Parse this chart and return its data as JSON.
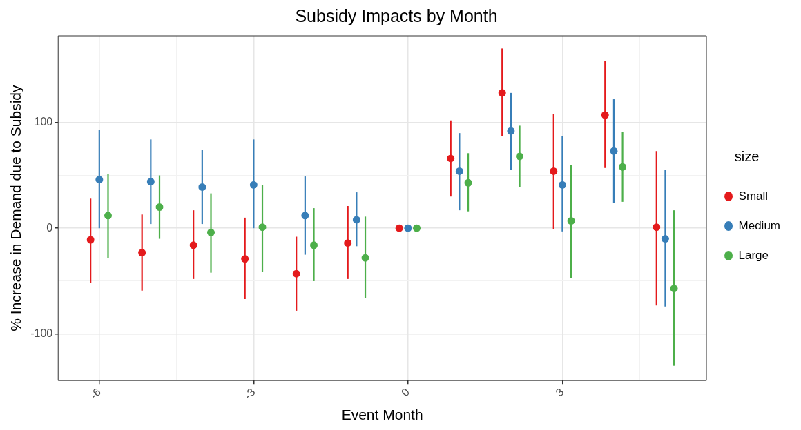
{
  "chart_data": {
    "type": "scatter",
    "title": "Subsidy Impacts by Month",
    "xlabel": "Event Month",
    "ylabel": "% Increase in Demand due to Subsidy",
    "legend_title": "size",
    "legend": "right",
    "grid": true,
    "marker": "circle",
    "xlim": [
      -6.8,
      5.8
    ],
    "xticks": [
      -6,
      {
        "value": -4.5,
        "label": null
      },
      -3,
      {
        "value": -1.5,
        "label": null
      },
      0,
      {
        "value": 1.5,
        "label": null
      },
      3,
      {
        "value": 4.5,
        "label": null
      }
    ],
    "ylim": [
      -144,
      182
    ],
    "yticks": [
      -100,
      {
        "value": -50,
        "label": null
      },
      0,
      {
        "value": 50,
        "label": null
      },
      100,
      {
        "value": 150,
        "label": null
      }
    ],
    "series": [
      {
        "name": "Small",
        "color": "#e41a1c",
        "x": [
          -6.17,
          -5.17,
          -4.17,
          -3.17,
          -2.17,
          -1.17,
          -0.17,
          0.83,
          1.83,
          2.83,
          3.83,
          4.83
        ],
        "values": [
          -11,
          -23,
          -16,
          -29,
          -43,
          -14,
          0,
          66,
          128,
          54,
          107,
          1
        ],
        "errors": [
          [
            -52,
            28
          ],
          [
            -59,
            13
          ],
          [
            -48,
            17
          ],
          [
            -67,
            10
          ],
          [
            -78,
            -8
          ],
          [
            -48,
            21
          ],
          null,
          [
            30,
            102
          ],
          [
            87,
            170
          ],
          [
            -1,
            108
          ],
          [
            57,
            158
          ],
          [
            -73,
            73
          ]
        ]
      },
      {
        "name": "Medium",
        "color": "#377eb8",
        "x": [
          -6,
          -5,
          -4,
          -3,
          -2,
          -1,
          0,
          1,
          2,
          3,
          4,
          5
        ],
        "values": [
          46,
          44,
          39,
          41,
          12,
          8,
          0,
          54,
          92,
          41,
          73,
          -10
        ],
        "errors": [
          [
            0,
            93
          ],
          [
            4,
            84
          ],
          [
            4,
            74
          ],
          [
            0,
            84
          ],
          [
            -25,
            49
          ],
          [
            -17,
            34
          ],
          null,
          [
            17,
            90
          ],
          [
            55,
            128
          ],
          [
            -3,
            87
          ],
          [
            24,
            122
          ],
          [
            -74,
            55
          ]
        ]
      },
      {
        "name": "Large",
        "color": "#4daf4a",
        "x": [
          -5.83,
          -4.83,
          -3.83,
          -2.83,
          -1.83,
          -0.83,
          0.17,
          1.17,
          2.17,
          3.17,
          4.17,
          5.17
        ],
        "values": [
          12,
          20,
          -4,
          1,
          -16,
          -28,
          0,
          43,
          68,
          7,
          58,
          -57
        ],
        "errors": [
          [
            -28,
            51
          ],
          [
            -10,
            50
          ],
          [
            -42,
            33
          ],
          [
            -41,
            41
          ],
          [
            -50,
            19
          ],
          [
            -66,
            11
          ],
          null,
          [
            16,
            71
          ],
          [
            39,
            97
          ],
          [
            -47,
            60
          ],
          [
            25,
            91
          ],
          [
            -130,
            17
          ]
        ]
      }
    ]
  }
}
